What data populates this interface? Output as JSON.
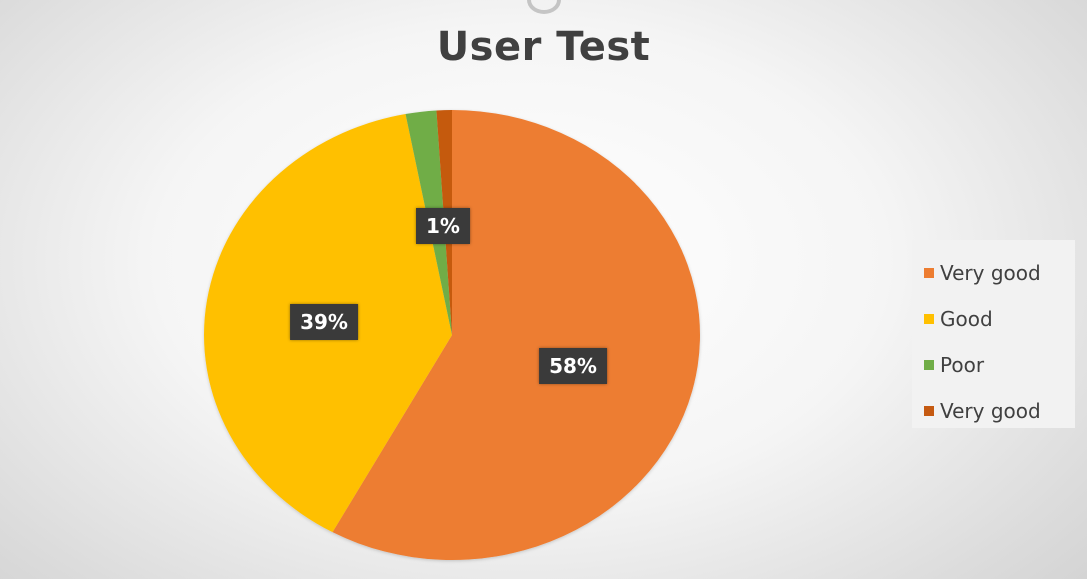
{
  "chart_data": {
    "type": "pie",
    "title": "User Test",
    "categories": [
      "Very good",
      "Good",
      "Poor",
      "Very good"
    ],
    "values": [
      58,
      39,
      2,
      1
    ],
    "colors": [
      "#ED7D31",
      "#FFC000",
      "#70AD47",
      "#C55A11"
    ],
    "data_labels": [
      "58%",
      "39%",
      "",
      "1%"
    ],
    "legend": "right"
  }
}
